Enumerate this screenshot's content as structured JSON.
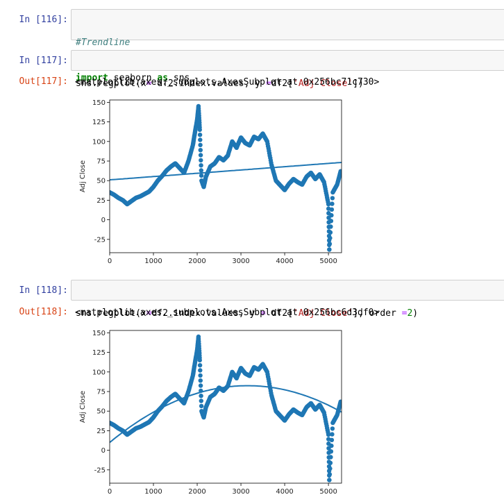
{
  "cells": [
    {
      "prompt": "In [116]:",
      "code": [
        [
          {
            "t": "#Trendline",
            "c": "cmt"
          }
        ],
        [
          {
            "t": "import",
            "c": "kw"
          },
          {
            "t": " seaborn ",
            "c": ""
          },
          {
            "t": "as",
            "c": "kw"
          },
          {
            "t": " sns",
            "c": ""
          }
        ]
      ]
    },
    {
      "prompt": "In [117]:",
      "code": [
        [
          {
            "t": "sns.regplot(x",
            "c": ""
          },
          {
            "t": "=",
            "c": "op"
          },
          {
            "t": " df2.index.values, y ",
            "c": ""
          },
          {
            "t": "=",
            "c": "op"
          },
          {
            "t": "df2[",
            "c": ""
          },
          {
            "t": "'Adj Close'",
            "c": "str"
          },
          {
            "t": "])",
            "c": ""
          }
        ]
      ],
      "out_prompt": "Out[117]:",
      "out_text": "<matplotlib.axes._subplots.AxesSubplot at 0x256bc71c730>"
    },
    {
      "prompt": "In [118]:",
      "code": [
        [
          {
            "t": "sns.regplot(x",
            "c": ""
          },
          {
            "t": "=",
            "c": "op"
          },
          {
            "t": "df2.index.values, y ",
            "c": ""
          },
          {
            "t": "=",
            "c": "op"
          },
          {
            "t": " df2[",
            "c": ""
          },
          {
            "t": "'Adj Close'",
            "c": "str"
          },
          {
            "t": "], order ",
            "c": ""
          },
          {
            "t": "=",
            "c": "op"
          },
          {
            "t": "2",
            "c": "num"
          },
          {
            "t": ")",
            "c": ""
          }
        ]
      ],
      "out_prompt": "Out[118]:",
      "out_text": "<matplotlib.axes._subplots.AxesSubplot at 0x256bc6d3df0>"
    }
  ],
  "colors": {
    "series": "#1f77b4"
  },
  "chart_data": [
    {
      "type": "scatter",
      "ylabel": "Adj Close",
      "xlim": [
        0,
        5300
      ],
      "ylim": [
        -42,
        153
      ],
      "xticks": [
        0,
        1000,
        2000,
        3000,
        4000,
        5000
      ],
      "yticks": [
        -25,
        0,
        25,
        50,
        75,
        100,
        125,
        150
      ],
      "points_x": [
        0,
        100,
        200,
        300,
        400,
        500,
        600,
        700,
        800,
        900,
        1000,
        1100,
        1200,
        1300,
        1400,
        1500,
        1600,
        1700,
        1800,
        1900,
        1950,
        2000,
        2030,
        2060,
        2100,
        2150,
        2200,
        2300,
        2400,
        2500,
        2600,
        2700,
        2800,
        2900,
        3000,
        3100,
        3200,
        3300,
        3400,
        3500,
        3600,
        3700,
        3800,
        3900,
        4000,
        4100,
        4200,
        4300,
        4400,
        4500,
        4600,
        4700,
        4800,
        4900,
        5000,
        5020,
        5100,
        5200,
        5280
      ],
      "points_y": [
        35,
        32,
        28,
        25,
        20,
        24,
        28,
        30,
        33,
        36,
        42,
        50,
        56,
        63,
        68,
        72,
        66,
        60,
        75,
        95,
        112,
        128,
        145,
        115,
        50,
        42,
        55,
        68,
        72,
        80,
        76,
        82,
        100,
        92,
        105,
        98,
        95,
        106,
        103,
        110,
        100,
        70,
        50,
        44,
        38,
        46,
        52,
        48,
        45,
        55,
        60,
        52,
        58,
        48,
        20,
        -38,
        35,
        45,
        62
      ],
      "fit": {
        "order": 1,
        "coefficients": [
          51,
          0.0042
        ]
      }
    },
    {
      "type": "scatter",
      "ylabel": "Adj Close",
      "xlim": [
        0,
        5300
      ],
      "ylim": [
        -42,
        153
      ],
      "xticks": [
        0,
        1000,
        2000,
        3000,
        4000,
        5000
      ],
      "yticks": [
        -25,
        0,
        25,
        50,
        75,
        100,
        125,
        150
      ],
      "points_x": [
        0,
        100,
        200,
        300,
        400,
        500,
        600,
        700,
        800,
        900,
        1000,
        1100,
        1200,
        1300,
        1400,
        1500,
        1600,
        1700,
        1800,
        1900,
        1950,
        2000,
        2030,
        2060,
        2100,
        2150,
        2200,
        2300,
        2400,
        2500,
        2600,
        2700,
        2800,
        2900,
        3000,
        3100,
        3200,
        3300,
        3400,
        3500,
        3600,
        3700,
        3800,
        3900,
        4000,
        4100,
        4200,
        4300,
        4400,
        4500,
        4600,
        4700,
        4800,
        4900,
        5000,
        5020,
        5100,
        5200,
        5280
      ],
      "points_y": [
        35,
        32,
        28,
        25,
        20,
        24,
        28,
        30,
        33,
        36,
        42,
        50,
        56,
        63,
        68,
        72,
        66,
        60,
        75,
        95,
        112,
        128,
        145,
        115,
        50,
        42,
        55,
        68,
        72,
        80,
        76,
        82,
        100,
        92,
        105,
        98,
        95,
        106,
        103,
        110,
        100,
        70,
        50,
        44,
        38,
        46,
        52,
        48,
        45,
        55,
        60,
        52,
        58,
        48,
        20,
        -38,
        35,
        45,
        62
      ],
      "fit": {
        "order": 2,
        "coefficients": [
          10,
          0.046,
          -7.3e-06
        ]
      }
    }
  ]
}
